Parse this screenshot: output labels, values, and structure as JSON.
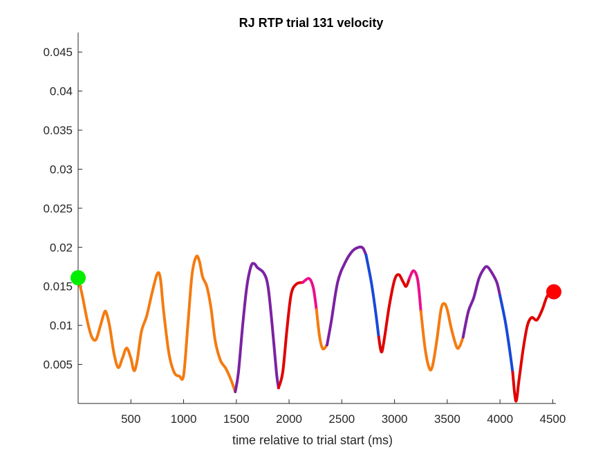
{
  "chart_data": {
    "type": "line",
    "title": "RJ  RTP trial 131 velocity",
    "xlabel": "time relative to trial start (ms)",
    "ylabel": "",
    "xlim": [
      0,
      4530
    ],
    "ylim": [
      0,
      0.0475
    ],
    "xticks": [
      500,
      1000,
      1500,
      2000,
      2500,
      3000,
      3500,
      4000,
      4500
    ],
    "yticks": [
      0.005,
      0.01,
      0.015,
      0.02,
      0.025,
      0.03,
      0.035,
      0.04,
      0.045
    ],
    "xtick_labels": [
      "500",
      "1000",
      "1500",
      "2000",
      "2500",
      "3000",
      "3500",
      "4000",
      "4500"
    ],
    "ytick_labels": [
      "0.005",
      "0.01",
      "0.015",
      "0.02",
      "0.025",
      "0.03",
      "0.035",
      "0.04",
      "0.045"
    ],
    "grid": false,
    "colors": {
      "orange": "#F47B10",
      "purple": "#7B22A3",
      "red": "#E00000",
      "magenta": "#EC0F8A",
      "blue": "#1849D8",
      "start_marker": "#00EE00",
      "end_marker": "#FF0000"
    },
    "segments": [
      {
        "color": "orange",
        "points": [
          [
            0,
            0.0161
          ],
          [
            40,
            0.0138
          ],
          [
            90,
            0.0104
          ],
          [
            130,
            0.0085
          ],
          [
            170,
            0.0082
          ],
          [
            210,
            0.0099
          ],
          [
            250,
            0.0117
          ],
          [
            270,
            0.0115
          ],
          [
            300,
            0.0098
          ],
          [
            340,
            0.0064
          ],
          [
            380,
            0.0046
          ],
          [
            420,
            0.0058
          ],
          [
            460,
            0.0071
          ],
          [
            500,
            0.0058
          ],
          [
            530,
            0.0042
          ],
          [
            560,
            0.0055
          ],
          [
            600,
            0.0092
          ],
          [
            650,
            0.0112
          ],
          [
            700,
            0.0141
          ],
          [
            750,
            0.0166
          ],
          [
            780,
            0.016
          ],
          [
            810,
            0.0119
          ],
          [
            860,
            0.0065
          ],
          [
            910,
            0.004
          ],
          [
            960,
            0.0035
          ],
          [
            1000,
            0.0036
          ],
          [
            1040,
            0.01
          ],
          [
            1080,
            0.0165
          ],
          [
            1120,
            0.0188
          ],
          [
            1150,
            0.0182
          ],
          [
            1180,
            0.0162
          ],
          [
            1220,
            0.015
          ],
          [
            1260,
            0.0122
          ],
          [
            1300,
            0.008
          ],
          [
            1350,
            0.0055
          ],
          [
            1400,
            0.0045
          ],
          [
            1450,
            0.003
          ],
          [
            1490,
            0.0015
          ]
        ]
      },
      {
        "color": "purple",
        "points": [
          [
            1490,
            0.0015
          ],
          [
            1520,
            0.004
          ],
          [
            1560,
            0.01
          ],
          [
            1600,
            0.015
          ],
          [
            1640,
            0.0176
          ],
          [
            1670,
            0.0179
          ],
          [
            1700,
            0.0174
          ],
          [
            1760,
            0.0167
          ],
          [
            1800,
            0.015
          ],
          [
            1840,
            0.01
          ],
          [
            1880,
            0.004
          ],
          [
            1900,
            0.002
          ]
        ]
      },
      {
        "color": "red",
        "points": [
          [
            1900,
            0.002
          ],
          [
            1940,
            0.004
          ],
          [
            1980,
            0.0095
          ],
          [
            2020,
            0.014
          ],
          [
            2070,
            0.0153
          ],
          [
            2130,
            0.0155
          ]
        ]
      },
      {
        "color": "magenta",
        "points": [
          [
            2130,
            0.0155
          ],
          [
            2190,
            0.016
          ],
          [
            2230,
            0.0148
          ],
          [
            2260,
            0.012
          ]
        ]
      },
      {
        "color": "orange",
        "points": [
          [
            2260,
            0.012
          ],
          [
            2290,
            0.0085
          ],
          [
            2320,
            0.007
          ],
          [
            2360,
            0.0075
          ]
        ]
      },
      {
        "color": "purple",
        "points": [
          [
            2360,
            0.0075
          ],
          [
            2400,
            0.0105
          ],
          [
            2460,
            0.0155
          ],
          [
            2530,
            0.018
          ],
          [
            2600,
            0.0195
          ],
          [
            2660,
            0.02
          ],
          [
            2700,
            0.0199
          ],
          [
            2730,
            0.019
          ]
        ]
      },
      {
        "color": "blue",
        "points": [
          [
            2730,
            0.019
          ],
          [
            2780,
            0.0155
          ],
          [
            2820,
            0.0118
          ],
          [
            2850,
            0.0085
          ]
        ]
      },
      {
        "color": "red",
        "points": [
          [
            2850,
            0.0085
          ],
          [
            2875,
            0.0066
          ],
          [
            2900,
            0.008
          ],
          [
            2950,
            0.0125
          ],
          [
            3000,
            0.0158
          ],
          [
            3040,
            0.0165
          ],
          [
            3080,
            0.0156
          ],
          [
            3110,
            0.015
          ],
          [
            3140,
            0.016
          ]
        ]
      },
      {
        "color": "magenta",
        "points": [
          [
            3140,
            0.016
          ],
          [
            3180,
            0.017
          ],
          [
            3220,
            0.0158
          ],
          [
            3250,
            0.0118
          ]
        ]
      },
      {
        "color": "orange",
        "points": [
          [
            3250,
            0.0118
          ],
          [
            3290,
            0.007
          ],
          [
            3330,
            0.0045
          ],
          [
            3360,
            0.0048
          ],
          [
            3400,
            0.008
          ],
          [
            3440,
            0.012
          ],
          [
            3470,
            0.0128
          ],
          [
            3500,
            0.012
          ],
          [
            3540,
            0.0095
          ],
          [
            3590,
            0.0072
          ],
          [
            3620,
            0.0074
          ],
          [
            3650,
            0.0085
          ]
        ]
      },
      {
        "color": "purple",
        "points": [
          [
            3650,
            0.0085
          ],
          [
            3700,
            0.0118
          ],
          [
            3750,
            0.0135
          ],
          [
            3800,
            0.016
          ],
          [
            3850,
            0.0173
          ],
          [
            3880,
            0.0175
          ],
          [
            3920,
            0.0168
          ],
          [
            3970,
            0.0155
          ],
          [
            4000,
            0.0138
          ]
        ]
      },
      {
        "color": "blue",
        "points": [
          [
            4000,
            0.0138
          ],
          [
            4050,
            0.0105
          ],
          [
            4090,
            0.007
          ],
          [
            4120,
            0.004
          ]
        ]
      },
      {
        "color": "red",
        "points": [
          [
            4120,
            0.004
          ],
          [
            4150,
            0.0003
          ],
          [
            4180,
            0.003
          ],
          [
            4220,
            0.007
          ],
          [
            4260,
            0.01
          ],
          [
            4300,
            0.011
          ],
          [
            4350,
            0.0107
          ],
          [
            4400,
            0.012
          ],
          [
            4450,
            0.0138
          ],
          [
            4510,
            0.0143
          ]
        ]
      }
    ],
    "markers": [
      {
        "name": "start",
        "x": 0,
        "y": 0.0161,
        "color": "start_marker"
      },
      {
        "name": "end",
        "x": 4510,
        "y": 0.0143,
        "color": "end_marker"
      }
    ]
  }
}
